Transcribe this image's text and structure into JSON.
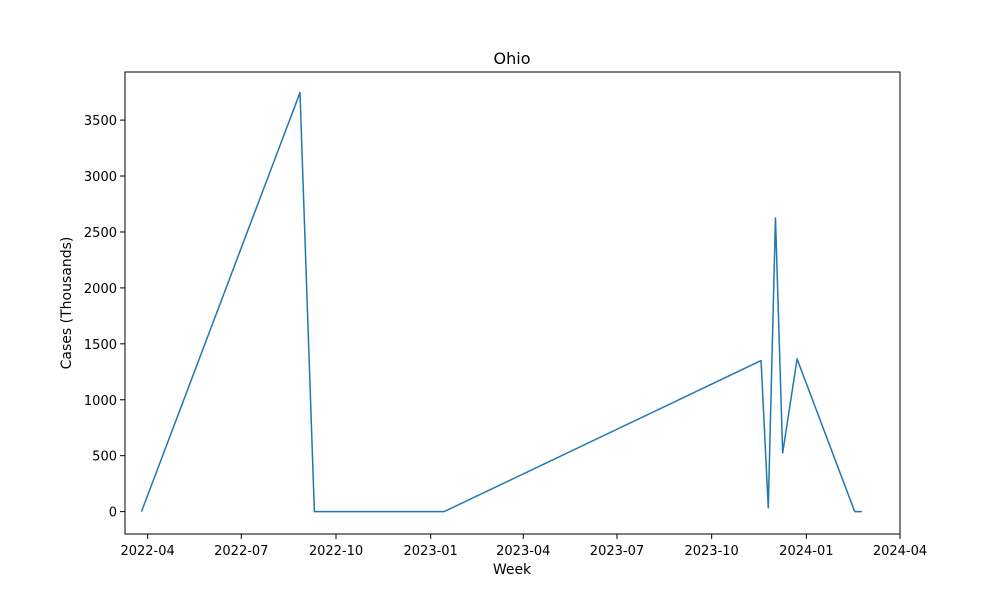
{
  "chart_data": {
    "type": "line",
    "title": "Ohio",
    "xlabel": "Week",
    "ylabel": "Cases (Thousands)",
    "x_is_date": true,
    "xlim": [
      "2022-03-10",
      "2024-04-01"
    ],
    "ylim": [
      -200,
      3930
    ],
    "x_ticks": [
      "2022-04-01",
      "2022-07-01",
      "2022-10-01",
      "2023-01-01",
      "2023-04-01",
      "2023-07-01",
      "2023-10-01",
      "2024-01-01",
      "2024-04-01"
    ],
    "x_tick_labels": [
      "2022-04",
      "2022-07",
      "2022-10",
      "2023-01",
      "2023-04",
      "2023-07",
      "2023-10",
      "2024-01",
      "2024-04"
    ],
    "y_ticks": [
      0,
      500,
      1000,
      1500,
      2000,
      2500,
      3000,
      3500
    ],
    "y_tick_labels": [
      "0",
      "500",
      "1000",
      "1500",
      "2000",
      "2500",
      "3000",
      "3500"
    ],
    "grid": false,
    "series": [
      {
        "color": "#1f77b4",
        "x": [
          "2022-03-26",
          "2022-08-27",
          "2022-09-10",
          "2023-01-14",
          "2023-11-18",
          "2023-11-25",
          "2023-12-02",
          "2023-12-09",
          "2023-12-23",
          "2024-02-17",
          "2024-02-24"
        ],
        "y": [
          0,
          3745,
          0,
          0,
          1350,
          35,
          2625,
          525,
          1365,
          0,
          0
        ]
      }
    ]
  }
}
